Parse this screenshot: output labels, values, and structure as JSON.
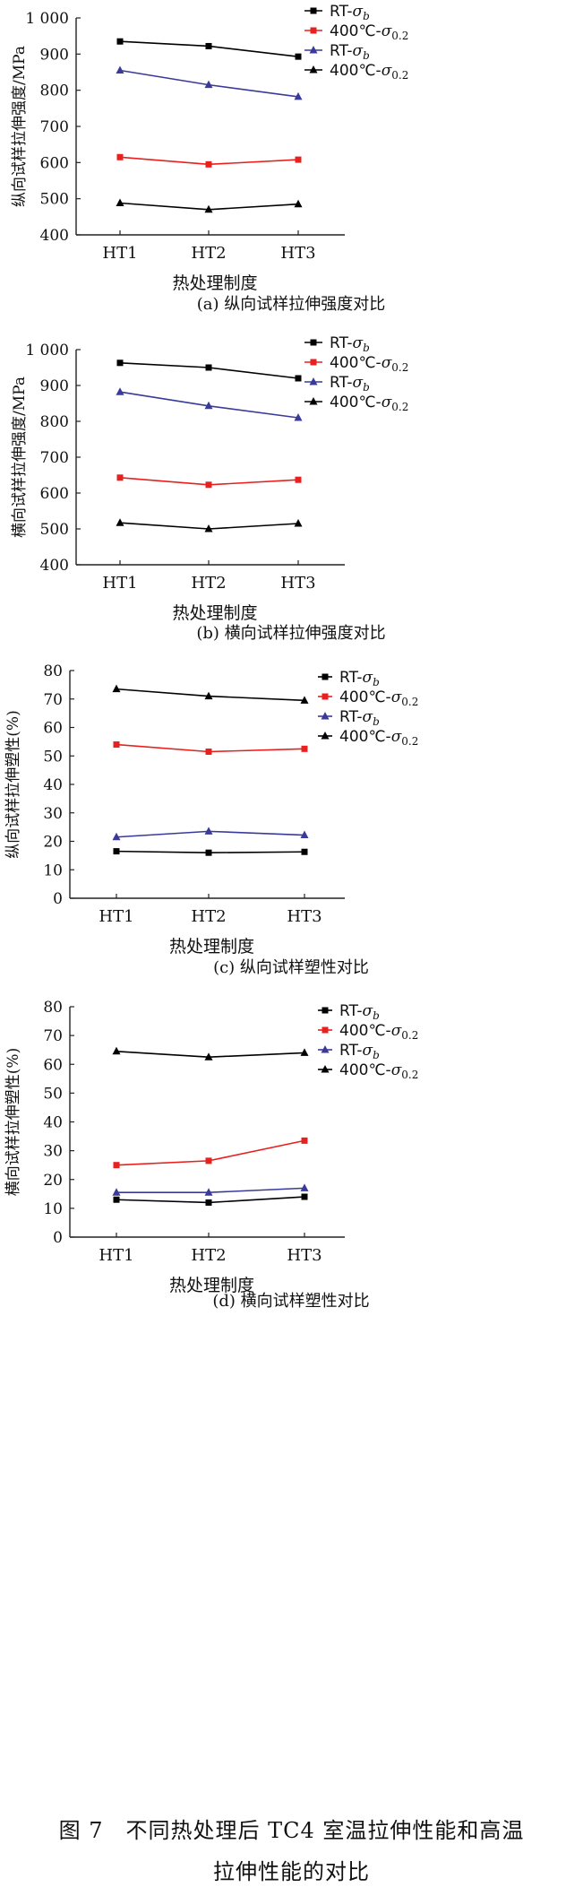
{
  "figure": {
    "caption_line1": "图 7　不同热处理后 TC4 室温拉伸性能和高温",
    "caption_line2": "拉伸性能的对比"
  },
  "chart_data": [
    {
      "type": "line",
      "panel": "a",
      "title": "(a) 纵向试样拉伸强度对比",
      "xlabel": "热处理制度",
      "ylabel": "纵向试样拉伸强度/MPa",
      "categories": [
        "HT1",
        "HT2",
        "HT3"
      ],
      "ylim": [
        400,
        1000
      ],
      "yticks": [
        400,
        500,
        600,
        700,
        800,
        900,
        1000
      ],
      "ytick_labels": [
        "400",
        "500",
        "600",
        "700",
        "800",
        "900",
        "1 000"
      ],
      "legend_position": "top-right",
      "series": [
        {
          "name": "RT-σb",
          "legend_base": "RT-",
          "legend_sym": "σ",
          "legend_sub": "b",
          "color": "#000000",
          "marker": "square",
          "values": [
            935,
            922,
            893
          ]
        },
        {
          "name": "400℃-σ0.2",
          "legend_base": "400℃-",
          "legend_sym": "σ",
          "legend_sub": "0.2",
          "color": "#e8201e",
          "marker": "square",
          "values": [
            615,
            595,
            608
          ]
        },
        {
          "name": "RT-σb",
          "legend_base": "RT-",
          "legend_sym": "σ",
          "legend_sub": "b",
          "color": "#3a3a9a",
          "marker": "triangle",
          "values": [
            855,
            815,
            782
          ]
        },
        {
          "name": "400℃-σ0.2",
          "legend_base": "400℃-",
          "legend_sym": "σ",
          "legend_sub": "0.2",
          "color": "#000000",
          "marker": "triangle",
          "values": [
            488,
            470,
            485
          ]
        }
      ]
    },
    {
      "type": "line",
      "panel": "b",
      "title": "(b) 横向试样拉伸强度对比",
      "xlabel": "热处理制度",
      "ylabel": "横向试样拉伸强度/MPa",
      "categories": [
        "HT1",
        "HT2",
        "HT3"
      ],
      "ylim": [
        400,
        1000
      ],
      "yticks": [
        400,
        500,
        600,
        700,
        800,
        900,
        1000
      ],
      "ytick_labels": [
        "400",
        "500",
        "600",
        "700",
        "800",
        "900",
        "1 000"
      ],
      "legend_position": "top-right",
      "series": [
        {
          "name": "RT-σb",
          "legend_base": "RT-",
          "legend_sym": "σ",
          "legend_sub": "b",
          "color": "#000000",
          "marker": "square",
          "values": [
            963,
            950,
            920
          ]
        },
        {
          "name": "400℃-σ0.2",
          "legend_base": "400℃-",
          "legend_sym": "σ",
          "legend_sub": "0.2",
          "color": "#e8201e",
          "marker": "square",
          "values": [
            643,
            623,
            637
          ]
        },
        {
          "name": "RT-σb",
          "legend_base": "RT-",
          "legend_sym": "σ",
          "legend_sub": "b",
          "color": "#3a3a9a",
          "marker": "triangle",
          "values": [
            882,
            843,
            810
          ]
        },
        {
          "name": "400℃-σ0.2",
          "legend_base": "400℃-",
          "legend_sym": "σ",
          "legend_sub": "0.2",
          "color": "#000000",
          "marker": "triangle",
          "values": [
            517,
            500,
            515
          ]
        }
      ]
    },
    {
      "type": "line",
      "panel": "c",
      "title": "(c) 纵向试样塑性对比",
      "xlabel": "热处理制度",
      "ylabel": "纵向试样拉伸塑性(%)",
      "categories": [
        "HT1",
        "HT2",
        "HT3"
      ],
      "ylim": [
        0,
        80
      ],
      "yticks": [
        0,
        10,
        20,
        30,
        40,
        50,
        60,
        70,
        80
      ],
      "ytick_labels": [
        "0",
        "10",
        "20",
        "30",
        "40",
        "50",
        "60",
        "70",
        "80"
      ],
      "legend_position": "top-right",
      "series": [
        {
          "name": "RT-σb",
          "legend_base": "RT-",
          "legend_sym": "σ",
          "legend_sub": "b",
          "color": "#000000",
          "marker": "square",
          "values": [
            16.5,
            16.0,
            16.3
          ]
        },
        {
          "name": "400℃-σ0.2",
          "legend_base": "400℃-",
          "legend_sym": "σ",
          "legend_sub": "0.2",
          "color": "#e8201e",
          "marker": "square",
          "values": [
            54.0,
            51.5,
            52.5
          ]
        },
        {
          "name": "RT-σb",
          "legend_base": "RT-",
          "legend_sym": "σ",
          "legend_sub": "b",
          "color": "#3a3a9a",
          "marker": "triangle",
          "values": [
            21.5,
            23.5,
            22.2
          ]
        },
        {
          "name": "400℃-σ0.2",
          "legend_base": "400℃-",
          "legend_sym": "σ",
          "legend_sub": "0.2",
          "color": "#000000",
          "marker": "triangle",
          "values": [
            73.5,
            71.0,
            69.5
          ]
        }
      ]
    },
    {
      "type": "line",
      "panel": "d",
      "title": "(d) 横向试样塑性对比",
      "xlabel": "热处理制度",
      "ylabel": "横向试样拉伸塑性(%)",
      "categories": [
        "HT1",
        "HT2",
        "HT3"
      ],
      "ylim": [
        0,
        80
      ],
      "yticks": [
        0,
        10,
        20,
        30,
        40,
        50,
        60,
        70,
        80
      ],
      "ytick_labels": [
        "0",
        "10",
        "20",
        "30",
        "40",
        "50",
        "60",
        "70",
        "80"
      ],
      "legend_position": "top-right",
      "series": [
        {
          "name": "RT-σb",
          "legend_base": "RT-",
          "legend_sym": "σ",
          "legend_sub": "b",
          "color": "#000000",
          "marker": "square",
          "values": [
            13.0,
            12.0,
            14.0
          ]
        },
        {
          "name": "400℃-σ0.2",
          "legend_base": "400℃-",
          "legend_sym": "σ",
          "legend_sub": "0.2",
          "color": "#e8201e",
          "marker": "square",
          "values": [
            25.0,
            26.5,
            33.5
          ]
        },
        {
          "name": "RT-σb",
          "legend_base": "RT-",
          "legend_sym": "σ",
          "legend_sub": "b",
          "color": "#3a3a9a",
          "marker": "triangle",
          "values": [
            15.5,
            15.5,
            17.0
          ]
        },
        {
          "name": "400℃-σ0.2",
          "legend_base": "400℃-",
          "legend_sym": "σ",
          "legend_sub": "0.2",
          "color": "#000000",
          "marker": "triangle",
          "values": [
            64.5,
            62.5,
            64.0
          ]
        }
      ]
    }
  ]
}
